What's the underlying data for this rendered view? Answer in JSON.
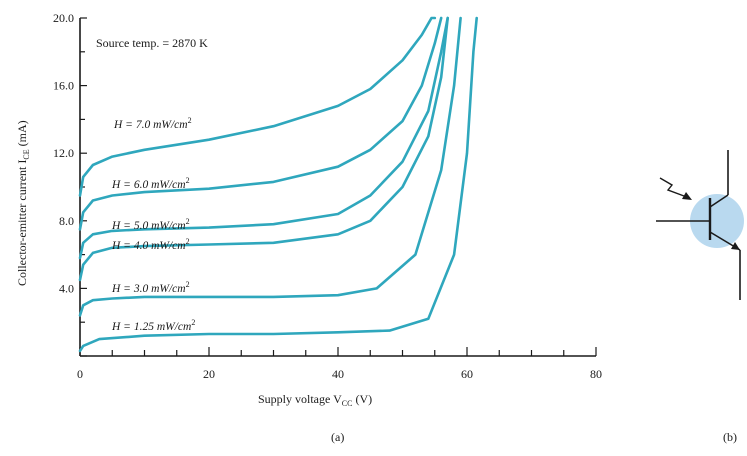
{
  "chart_data": {
    "type": "line",
    "title": "",
    "annotation": "Source temp. = 2870 K",
    "xlabel": "Supply voltage V",
    "xlabel_sub": "CC",
    "xlabel_unit": " (V)",
    "ylabel": "Collector-emitter current  I",
    "ylabel_sub": "CE",
    "ylabel_unit": " (mA)",
    "xlim": [
      0,
      80
    ],
    "ylim": [
      0,
      20
    ],
    "xticks": [
      0,
      20,
      40,
      60,
      80
    ],
    "yticks": [
      4.0,
      8.0,
      12.0,
      16.0,
      20.0
    ],
    "ytick_labels": [
      "4.0",
      "8.0",
      "12.0",
      "16.0",
      "20.0"
    ],
    "grid": false,
    "series": [
      {
        "name": "H = 7.0 mW/cm",
        "sup": "2",
        "x": [
          0,
          0.5,
          2,
          5,
          10,
          20,
          30,
          40,
          45,
          50,
          53,
          54.5,
          55
        ],
        "y": [
          9.5,
          10.6,
          11.3,
          11.8,
          12.2,
          12.8,
          13.6,
          14.8,
          15.8,
          17.5,
          19.0,
          20.5,
          22
        ]
      },
      {
        "name": "H = 6.0 mW/cm",
        "sup": "2",
        "x": [
          0,
          0.5,
          2,
          5,
          10,
          20,
          30,
          40,
          45,
          50,
          53,
          55,
          56
        ],
        "y": [
          7.5,
          8.5,
          9.2,
          9.5,
          9.7,
          9.9,
          10.3,
          11.2,
          12.2,
          13.9,
          16.0,
          18.5,
          22
        ]
      },
      {
        "name": "H = 5.0 mW/cm",
        "sup": "2",
        "x": [
          0,
          0.5,
          2,
          5,
          10,
          20,
          30,
          40,
          45,
          50,
          54,
          56,
          57
        ],
        "y": [
          5.8,
          6.7,
          7.2,
          7.4,
          7.5,
          7.6,
          7.8,
          8.4,
          9.5,
          11.5,
          14.5,
          18.0,
          22
        ]
      },
      {
        "name": "H = 4.0 mW/cm",
        "sup": "2",
        "x": [
          0,
          0.5,
          2,
          5,
          10,
          20,
          30,
          40,
          45,
          50,
          54,
          56,
          57
        ],
        "y": [
          4.5,
          5.4,
          6.1,
          6.4,
          6.5,
          6.6,
          6.7,
          7.2,
          8.0,
          10.0,
          13.0,
          16.5,
          22
        ]
      },
      {
        "name": "H = 3.0 mW/cm",
        "sup": "2",
        "x": [
          0,
          0.5,
          2,
          5,
          10,
          20,
          30,
          40,
          46,
          52,
          56,
          58,
          59
        ],
        "y": [
          2.4,
          3.0,
          3.3,
          3.4,
          3.5,
          3.5,
          3.5,
          3.6,
          4.0,
          6.0,
          11.0,
          16.0,
          22
        ]
      },
      {
        "name": "H = 1.25 mW/cm",
        "sup": "2",
        "x": [
          0,
          0.5,
          3,
          10,
          20,
          30,
          40,
          48,
          54,
          58,
          60,
          61,
          61.5
        ],
        "y": [
          0.3,
          0.6,
          1.0,
          1.2,
          1.3,
          1.3,
          1.4,
          1.5,
          2.2,
          6.0,
          12.0,
          18.0,
          22
        ]
      }
    ]
  },
  "labels": {
    "sub_a": "(a)",
    "sub_b": "(b)"
  },
  "symbol": {
    "name": "phototransistor-symbol",
    "highlight_color": "#b9d9ef"
  },
  "colors": {
    "curve": "#2fa7bd",
    "axis": "#1a1a1a",
    "background": "#ffffff"
  }
}
